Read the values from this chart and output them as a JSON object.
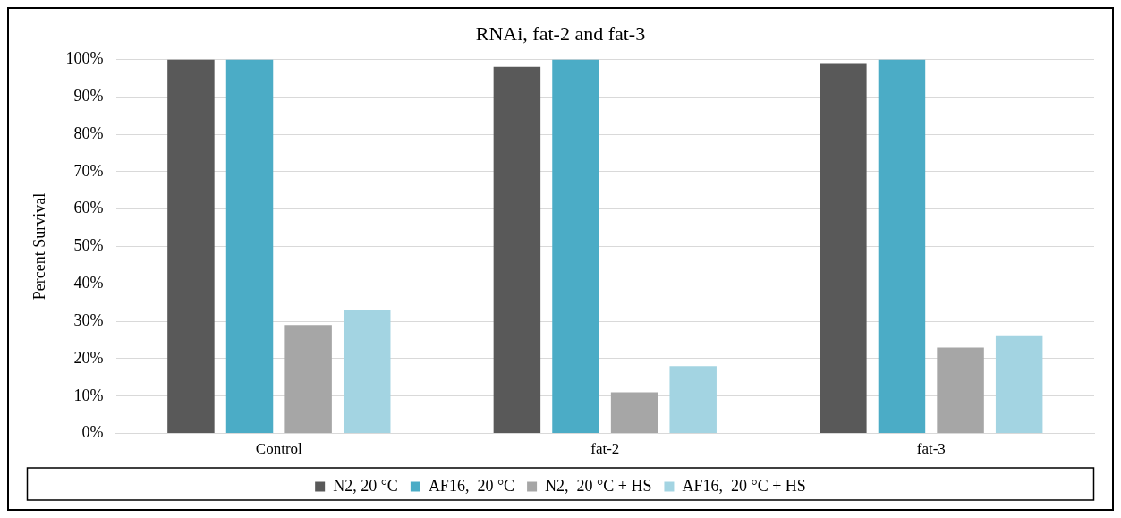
{
  "chart_data": {
    "type": "bar",
    "title": "RNAi, fat-2 and fat-3",
    "ylabel": "Percent Survival",
    "categories": [
      "Control",
      "fat-2",
      "fat-3"
    ],
    "series": [
      {
        "name": "N2, 20 °C",
        "color": "#595959",
        "values": [
          100,
          98,
          99
        ]
      },
      {
        "name": "AF16,  20 °C",
        "color": "#4bacc6",
        "values": [
          100,
          100,
          100
        ]
      },
      {
        "name": "N2,  20 °C + HS",
        "color": "#a6a6a6",
        "values": [
          29,
          11,
          23
        ]
      },
      {
        "name": "AF16,  20 °C + HS",
        "color": "#a3d4e2",
        "values": [
          33,
          18,
          26
        ]
      }
    ],
    "ylim": [
      0,
      100
    ],
    "yticks": [
      {
        "value": 0,
        "label": "0%"
      },
      {
        "value": 10,
        "label": "10%"
      },
      {
        "value": 20,
        "label": "20%"
      },
      {
        "value": 30,
        "label": "30%"
      },
      {
        "value": 40,
        "label": "40%"
      },
      {
        "value": 50,
        "label": "50%"
      },
      {
        "value": 60,
        "label": "60%"
      },
      {
        "value": 70,
        "label": "70%"
      },
      {
        "value": 80,
        "label": "80%"
      },
      {
        "value": 90,
        "label": "90%"
      },
      {
        "value": 100,
        "label": "100%"
      }
    ],
    "grid": "y",
    "legend": "bottom"
  }
}
